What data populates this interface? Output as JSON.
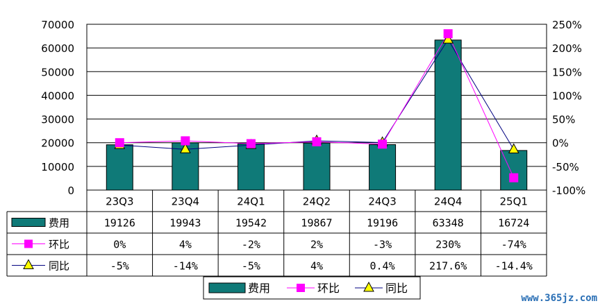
{
  "chart_data": {
    "type": "bar",
    "categories": [
      "23Q3",
      "23Q4",
      "24Q1",
      "24Q2",
      "24Q3",
      "24Q4",
      "25Q1"
    ],
    "series": [
      {
        "name": "费用",
        "kind": "bar",
        "axis": "left",
        "color": "#0f7a78",
        "values": [
          19126,
          19943,
          19542,
          19867,
          19196,
          63348,
          16724
        ],
        "labels": [
          "19126",
          "19943",
          "19542",
          "19867",
          "19196",
          "63348",
          "16724"
        ]
      },
      {
        "name": "环比",
        "kind": "line",
        "axis": "right",
        "color": "#ff00ff",
        "marker": "square",
        "values": [
          0,
          4,
          -2,
          2,
          -3,
          230,
          -74
        ],
        "labels": [
          "0%",
          "4%",
          "-2%",
          "2%",
          "-3%",
          "230%",
          "-74%"
        ]
      },
      {
        "name": "同比",
        "kind": "line",
        "axis": "right",
        "color": "#000080",
        "marker": "triangle",
        "marker_color": "#ffff00",
        "values": [
          -5,
          -14,
          -5,
          4,
          0.4,
          217.6,
          -14.4
        ],
        "labels": [
          "-5%",
          "-14%",
          "-5%",
          "4%",
          "0.4%",
          "217.6%",
          "-14.4%"
        ]
      }
    ],
    "y_left": {
      "min": 0,
      "max": 70000,
      "ticks": [
        "0",
        "10000",
        "20000",
        "30000",
        "40000",
        "50000",
        "60000",
        "70000"
      ]
    },
    "y_right": {
      "min": -100,
      "max": 250,
      "ticks": [
        "-100%",
        "-50%",
        "0%",
        "50%",
        "100%",
        "150%",
        "200%",
        "250%"
      ]
    },
    "grid": true,
    "data_table": true,
    "legend": "bottom",
    "watermark": "www.365jz.com"
  }
}
